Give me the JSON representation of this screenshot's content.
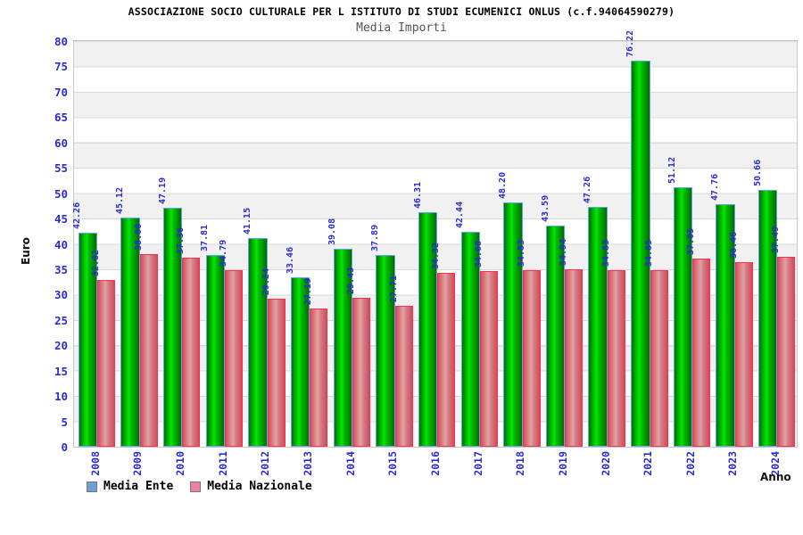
{
  "header": {
    "title": "ASSOCIAZIONE SOCIO CULTURALE PER L ISTITUTO DI STUDI ECUMENICI ONLUS (c.f.94064590279)",
    "subtitle": "Media Importi"
  },
  "chart_data": {
    "type": "bar",
    "title": "Media Importi",
    "xlabel": "Anno",
    "ylabel": "Euro",
    "ylim": [
      0,
      80
    ],
    "ytick_step": 5,
    "grid": "alternating horizontal bands, gridline every 5",
    "legend_position": "bottom-left",
    "categories": [
      "2008",
      "2009",
      "2010",
      "2011",
      "2012",
      "2013",
      "2014",
      "2015",
      "2016",
      "2017",
      "2018",
      "2019",
      "2020",
      "2021",
      "2022",
      "2023",
      "2024"
    ],
    "series": [
      {
        "name": "Media Ente",
        "legend_color": "#6f9fd8",
        "bar_color": "#00b900",
        "values": [
          42.26,
          45.12,
          47.19,
          37.81,
          41.15,
          33.46,
          39.08,
          37.89,
          46.31,
          42.44,
          48.2,
          43.59,
          47.26,
          76.22,
          51.12,
          47.76,
          50.66
        ],
        "value_labels": [
          "42.26",
          "45.12",
          "47.19",
          "37.81",
          "41.15",
          "33.46",
          "39.08",
          "37.89",
          "46.31",
          "42.44",
          "48.20",
          "43.59",
          "47.26",
          "76.22",
          "51.12",
          "47.76",
          "50.66"
        ]
      },
      {
        "name": "Media Nazionale",
        "legend_color": "#ef7fa6",
        "bar_color": "#d57a82",
        "values": [
          32.82,
          38.0,
          37.36,
          34.79,
          29.24,
          27.19,
          29.43,
          27.71,
          34.32,
          34.68,
          34.83,
          34.94,
          34.83,
          34.85,
          37.05,
          36.46,
          37.49
        ],
        "value_labels": [
          "32.82",
          "38.00",
          "37.36",
          "34.79",
          "29.24",
          "27.19",
          "29.43",
          "27.71",
          "34.32",
          "34.68",
          "34.83",
          "34.94",
          "34.83",
          "34.85",
          "37.05",
          "36.46",
          "37.49"
        ]
      }
    ],
    "colors": {
      "axis_text_blue": "#2b2bcf",
      "band_gray": "#f1f1f1",
      "plot_border": "#c9c9c9",
      "green_bar_border": "#5fa7e8",
      "red_bar_border": "#ff2c54"
    }
  }
}
